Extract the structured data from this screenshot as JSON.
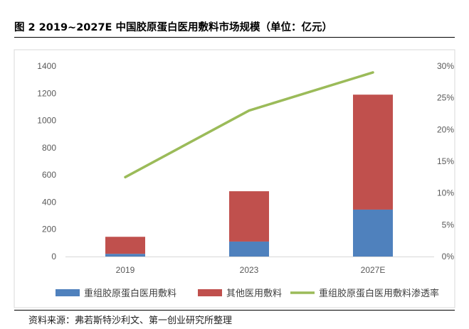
{
  "figure": {
    "title": "图 2 2019~2027E 中国胶原蛋白医用敷料市场规模（单位：亿元）",
    "source": "资料来源：弗若斯特沙利文、第一创业研究所整理"
  },
  "chart_data": {
    "type": "bar",
    "stacked": true,
    "categories": [
      "2019",
      "2023",
      "2027E"
    ],
    "series": [
      {
        "name": "重组胶原蛋白医用敷料",
        "axis": "left",
        "kind": "bar",
        "color": "#4f81bd",
        "values": [
          20,
          110,
          345
        ]
      },
      {
        "name": "其他医用敷料",
        "axis": "left",
        "kind": "bar",
        "color": "#c0504d",
        "values": [
          125,
          370,
          845
        ]
      },
      {
        "name": "重组胶原蛋白医用敷料渗透率",
        "axis": "right",
        "kind": "line",
        "color": "#9bbb59",
        "values": [
          12.5,
          23.0,
          29.0
        ]
      }
    ],
    "y_left": {
      "min": 0,
      "max": 1400,
      "ticks": [
        "0",
        "200",
        "400",
        "600",
        "800",
        "1000",
        "1200",
        "1400"
      ]
    },
    "y_right": {
      "min": 0,
      "max": 30,
      "ticks": [
        "0%",
        "5%",
        "10%",
        "15%",
        "20%",
        "25%",
        "30%"
      ]
    },
    "grid": false,
    "legend_position": "bottom"
  }
}
